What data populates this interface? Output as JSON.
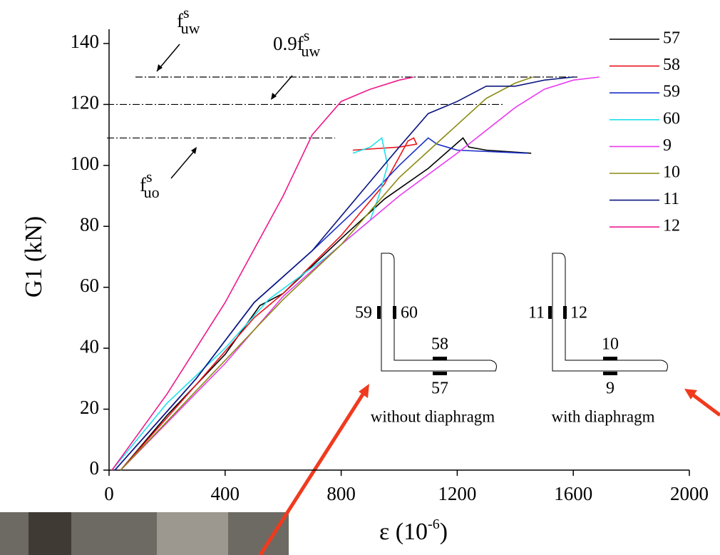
{
  "chart_data": {
    "type": "line",
    "ylabel": "G1 (kN)",
    "xlabel": {
      "text": "ε (10",
      "sup": "-6",
      "end": ")"
    },
    "xlim": [
      0,
      2000
    ],
    "xticks": [
      0,
      400,
      800,
      1200,
      1600,
      2000
    ],
    "ylim": [
      0,
      140
    ],
    "yticks": [
      0,
      20,
      40,
      60,
      80,
      100,
      120,
      140
    ],
    "reference_lines": [
      129,
      120,
      109
    ],
    "annotations": [
      {
        "base": "f",
        "sub": "uw",
        "sup": "s"
      },
      {
        "base": "0.9f",
        "sub": "uw",
        "sup": "s"
      },
      {
        "base": "f",
        "sub": "uo",
        "sup": "s"
      }
    ],
    "inset": {
      "left": {
        "gauges": [
          "59",
          "60",
          "58",
          "57"
        ],
        "caption": "without diaphragm"
      },
      "right": {
        "gauges": [
          "11",
          "12",
          "10",
          "9"
        ],
        "caption": "with diaphragm"
      }
    },
    "series": [
      {
        "name": "57",
        "color": "#000000",
        "x": [
          40,
          200,
          400,
          520,
          600,
          800,
          950,
          1100,
          1220,
          1240,
          1300,
          1455
        ],
        "values": [
          0,
          18,
          38,
          54,
          58,
          76,
          89,
          99,
          109,
          106,
          105,
          104
        ]
      },
      {
        "name": "58",
        "color": "#e8141c",
        "x": [
          40,
          300,
          500,
          600,
          800,
          950,
          1030,
          1050,
          1060,
          1000,
          840
        ],
        "values": [
          0,
          28,
          50,
          58,
          77,
          94,
          108,
          109,
          107,
          106,
          105
        ]
      },
      {
        "name": "59",
        "color": "#1b2fc8",
        "x": [
          20,
          300,
          500,
          700,
          900,
          1000,
          1100,
          1130,
          1200,
          1440
        ],
        "values": [
          0,
          30,
          55,
          72,
          90,
          100,
          109,
          107,
          105,
          104
        ]
      },
      {
        "name": "60",
        "color": "#1ee0ec",
        "x": [
          10,
          200,
          400,
          550,
          750,
          900,
          930,
          960,
          940,
          900,
          840
        ],
        "values": [
          0,
          22,
          40,
          56,
          70,
          82,
          90,
          100,
          109,
          106,
          104
        ]
      },
      {
        "name": "9",
        "color": "#e83cf0",
        "x": [
          40,
          400,
          600,
          800,
          1000,
          1200,
          1400,
          1500,
          1600,
          1690
        ],
        "values": [
          0,
          35,
          57,
          74,
          90,
          104,
          119,
          125,
          128,
          129
        ]
      },
      {
        "name": "10",
        "color": "#8a8a12",
        "x": [
          40,
          400,
          600,
          800,
          1000,
          1150,
          1300,
          1400,
          1460
        ],
        "values": [
          0,
          36,
          56,
          74,
          96,
          109,
          122,
          127,
          129
        ]
      },
      {
        "name": "11",
        "color": "#0c1780",
        "x": [
          20,
          300,
          500,
          700,
          850,
          1000,
          1100,
          1200,
          1300,
          1400,
          1500,
          1600
        ],
        "values": [
          0,
          30,
          55,
          72,
          89,
          106,
          117,
          121,
          126,
          126,
          128,
          129
        ]
      },
      {
        "name": "12",
        "color": "#ee1a8c",
        "x": [
          10,
          200,
          400,
          600,
          700,
          800,
          900,
          1000,
          1050
        ],
        "values": [
          0,
          25,
          55,
          90,
          110,
          121,
          125,
          128,
          129
        ]
      }
    ]
  }
}
